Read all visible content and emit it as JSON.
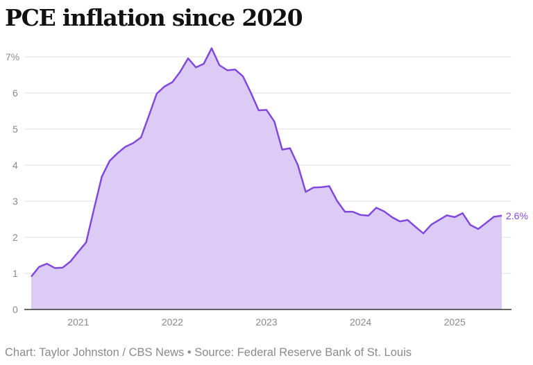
{
  "title": "PCE inflation since 2020",
  "footer": "Chart: Taylor Johnston / CBS News • Source: Federal Reserve Bank of St. Louis",
  "colors": {
    "line": "#8148dc",
    "fill": "#dccbf5",
    "grid": "#e6e6e6",
    "axis": "#333333",
    "tick": "#8a8a8a"
  },
  "chart_data": {
    "type": "area",
    "title": "PCE inflation since 2020",
    "xlabel": "",
    "ylabel": "",
    "ylim": [
      0,
      7
    ],
    "yticks": [
      "0",
      "1",
      "2",
      "3",
      "4",
      "5",
      "6",
      "7%"
    ],
    "xticks": [
      "2021",
      "2022",
      "2023",
      "2024",
      "2025"
    ],
    "grid": true,
    "start": "2020-07",
    "frequency": "monthly",
    "end_label": "2.6%",
    "values": [
      0.91,
      1.18,
      1.27,
      1.15,
      1.16,
      1.33,
      1.6,
      1.86,
      2.78,
      3.68,
      4.12,
      4.33,
      4.51,
      4.61,
      4.77,
      5.37,
      5.98,
      6.18,
      6.3,
      6.59,
      6.96,
      6.71,
      6.81,
      7.24,
      6.77,
      6.63,
      6.65,
      6.46,
      6.01,
      5.52,
      5.53,
      5.21,
      4.43,
      4.47,
      4.0,
      3.26,
      3.38,
      3.39,
      3.42,
      3.01,
      2.71,
      2.71,
      2.62,
      2.6,
      2.82,
      2.72,
      2.56,
      2.44,
      2.48,
      2.29,
      2.11,
      2.35,
      2.48,
      2.61,
      2.56,
      2.67,
      2.34,
      2.23,
      2.4,
      2.57,
      2.6
    ]
  }
}
